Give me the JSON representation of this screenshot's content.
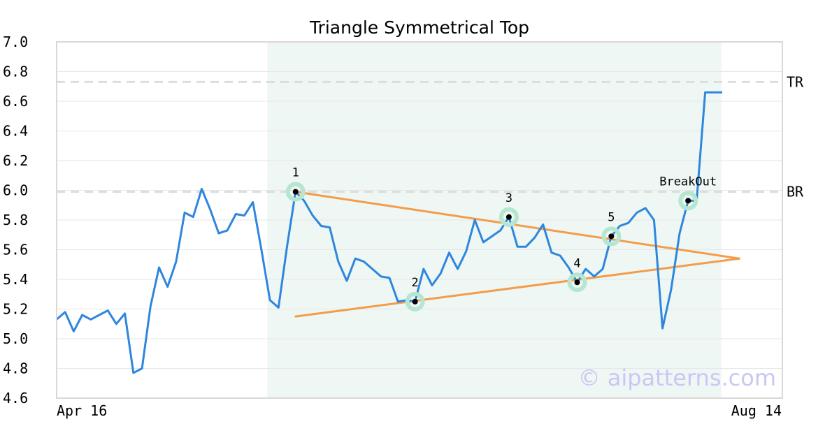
{
  "chart_data": {
    "type": "line",
    "title": "Triangle Symmetrical Top",
    "xlabel": "",
    "ylabel": "",
    "ylim": [
      4.6,
      7.0
    ],
    "y_ticks": [
      "7.0",
      "6.8",
      "6.6",
      "6.4",
      "6.2",
      "6.0",
      "5.8",
      "5.6",
      "5.4",
      "5.2",
      "5.0",
      "4.8",
      "4.6"
    ],
    "x_tick_labels": [
      "Apr 16",
      "Aug 14"
    ],
    "grid": true,
    "series": [
      {
        "color": "#2e86de",
        "values": [
          5.13,
          5.18,
          5.05,
          5.16,
          5.13,
          5.16,
          5.19,
          5.1,
          5.17,
          4.77,
          4.8,
          5.22,
          5.48,
          5.35,
          5.52,
          5.85,
          5.82,
          6.01,
          5.87,
          5.71,
          5.73,
          5.84,
          5.83,
          5.92,
          5.6,
          5.26,
          5.21,
          5.62,
          5.99,
          5.93,
          5.83,
          5.76,
          5.75,
          5.52,
          5.39,
          5.54,
          5.52,
          5.47,
          5.42,
          5.41,
          5.25,
          5.26,
          5.25,
          5.47,
          5.36,
          5.44,
          5.58,
          5.47,
          5.59,
          5.8,
          5.65,
          5.69,
          5.73,
          5.82,
          5.62,
          5.62,
          5.68,
          5.77,
          5.58,
          5.56,
          5.48,
          5.38,
          5.47,
          5.42,
          5.47,
          5.69,
          5.76,
          5.78,
          5.85,
          5.88,
          5.8,
          5.07,
          5.33,
          5.71,
          5.93,
          5.93,
          6.66,
          6.66,
          6.66
        ]
      }
    ],
    "reference_lines": [
      {
        "label": "TR",
        "value": 6.73
      },
      {
        "label": "BR",
        "value": 5.99
      }
    ],
    "pattern_region": {
      "start_index": 26,
      "end_index": 77
    },
    "trend_lines": [
      {
        "color": "#f39c4a",
        "from": {
          "index": 28,
          "value": 5.99
        },
        "to": {
          "index": 80,
          "value": 5.54
        }
      },
      {
        "color": "#f39c4a",
        "from": {
          "index": 28,
          "value": 5.15
        },
        "to": {
          "index": 80,
          "value": 5.54
        }
      }
    ],
    "pattern_points": [
      {
        "label": "1",
        "index": 28,
        "value": 5.99
      },
      {
        "label": "2",
        "index": 42,
        "value": 5.25
      },
      {
        "label": "3",
        "index": 53,
        "value": 5.82
      },
      {
        "label": "4",
        "index": 61,
        "value": 5.38
      },
      {
        "label": "5",
        "index": 65,
        "value": 5.69
      },
      {
        "label": "BreakOut",
        "index": 74,
        "value": 5.93
      }
    ],
    "colors": {
      "line": "#2e86de",
      "trend": "#f39c4a",
      "region": "#eef7f3",
      "marker_halo": "#b6e6cf",
      "reference": "#dddddd"
    }
  },
  "watermark": "© aipatterns.com"
}
